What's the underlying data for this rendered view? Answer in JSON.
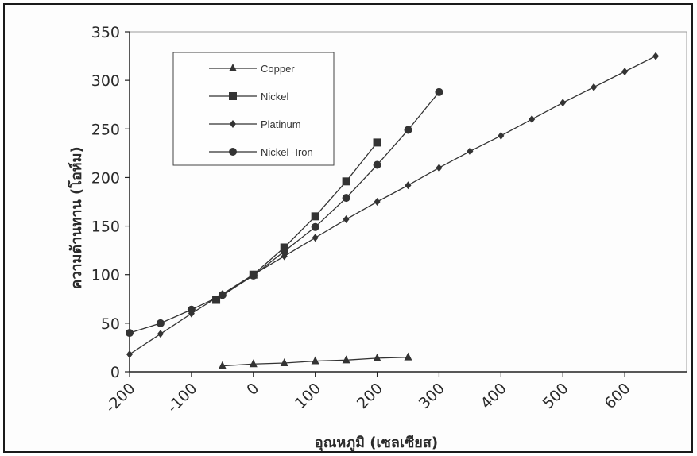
{
  "chart_data": {
    "type": "line",
    "title": "",
    "xlabel": "อุณหภูมิ (เซลเซียส)",
    "ylabel": "ความต้านทาน (โอห์ม)",
    "xlim": [
      -200,
      700
    ],
    "ylim": [
      0,
      350
    ],
    "x_ticks": [
      "-200",
      "-100",
      "0",
      "100",
      "200",
      "300",
      "400",
      "500",
      "600"
    ],
    "y_ticks": [
      "0",
      "50",
      "100",
      "150",
      "200",
      "250",
      "300",
      "350"
    ],
    "grid": false,
    "legend_position": "top-left",
    "series": [
      {
        "name": "Copper",
        "marker": "triangle",
        "color": "#333333",
        "points": [
          [
            -50,
            6
          ],
          [
            0,
            8
          ],
          [
            50,
            9
          ],
          [
            100,
            11
          ],
          [
            150,
            12
          ],
          [
            200,
            14
          ],
          [
            250,
            15
          ]
        ]
      },
      {
        "name": "Nickel",
        "marker": "square",
        "color": "#333333",
        "points": [
          [
            -60,
            74
          ],
          [
            0,
            100
          ],
          [
            50,
            128
          ],
          [
            100,
            160
          ],
          [
            150,
            196
          ],
          [
            200,
            236
          ]
        ]
      },
      {
        "name": "Platinum",
        "marker": "diamond",
        "color": "#333333",
        "points": [
          [
            -200,
            18
          ],
          [
            -150,
            39
          ],
          [
            -100,
            60
          ],
          [
            -50,
            80
          ],
          [
            0,
            100
          ],
          [
            50,
            119
          ],
          [
            100,
            138
          ],
          [
            150,
            157
          ],
          [
            200,
            175
          ],
          [
            250,
            192
          ],
          [
            300,
            210
          ],
          [
            350,
            227
          ],
          [
            400,
            243
          ],
          [
            450,
            260
          ],
          [
            500,
            277
          ],
          [
            550,
            293
          ],
          [
            600,
            309
          ],
          [
            650,
            325
          ]
        ]
      },
      {
        "name": "Nickel -Iron",
        "marker": "circle",
        "color": "#333333",
        "points": [
          [
            -200,
            40
          ],
          [
            -150,
            50
          ],
          [
            -100,
            64
          ],
          [
            -50,
            79
          ],
          [
            0,
            99
          ],
          [
            50,
            124
          ],
          [
            100,
            149
          ],
          [
            150,
            179
          ],
          [
            200,
            213
          ],
          [
            250,
            249
          ],
          [
            300,
            288
          ]
        ]
      }
    ]
  }
}
